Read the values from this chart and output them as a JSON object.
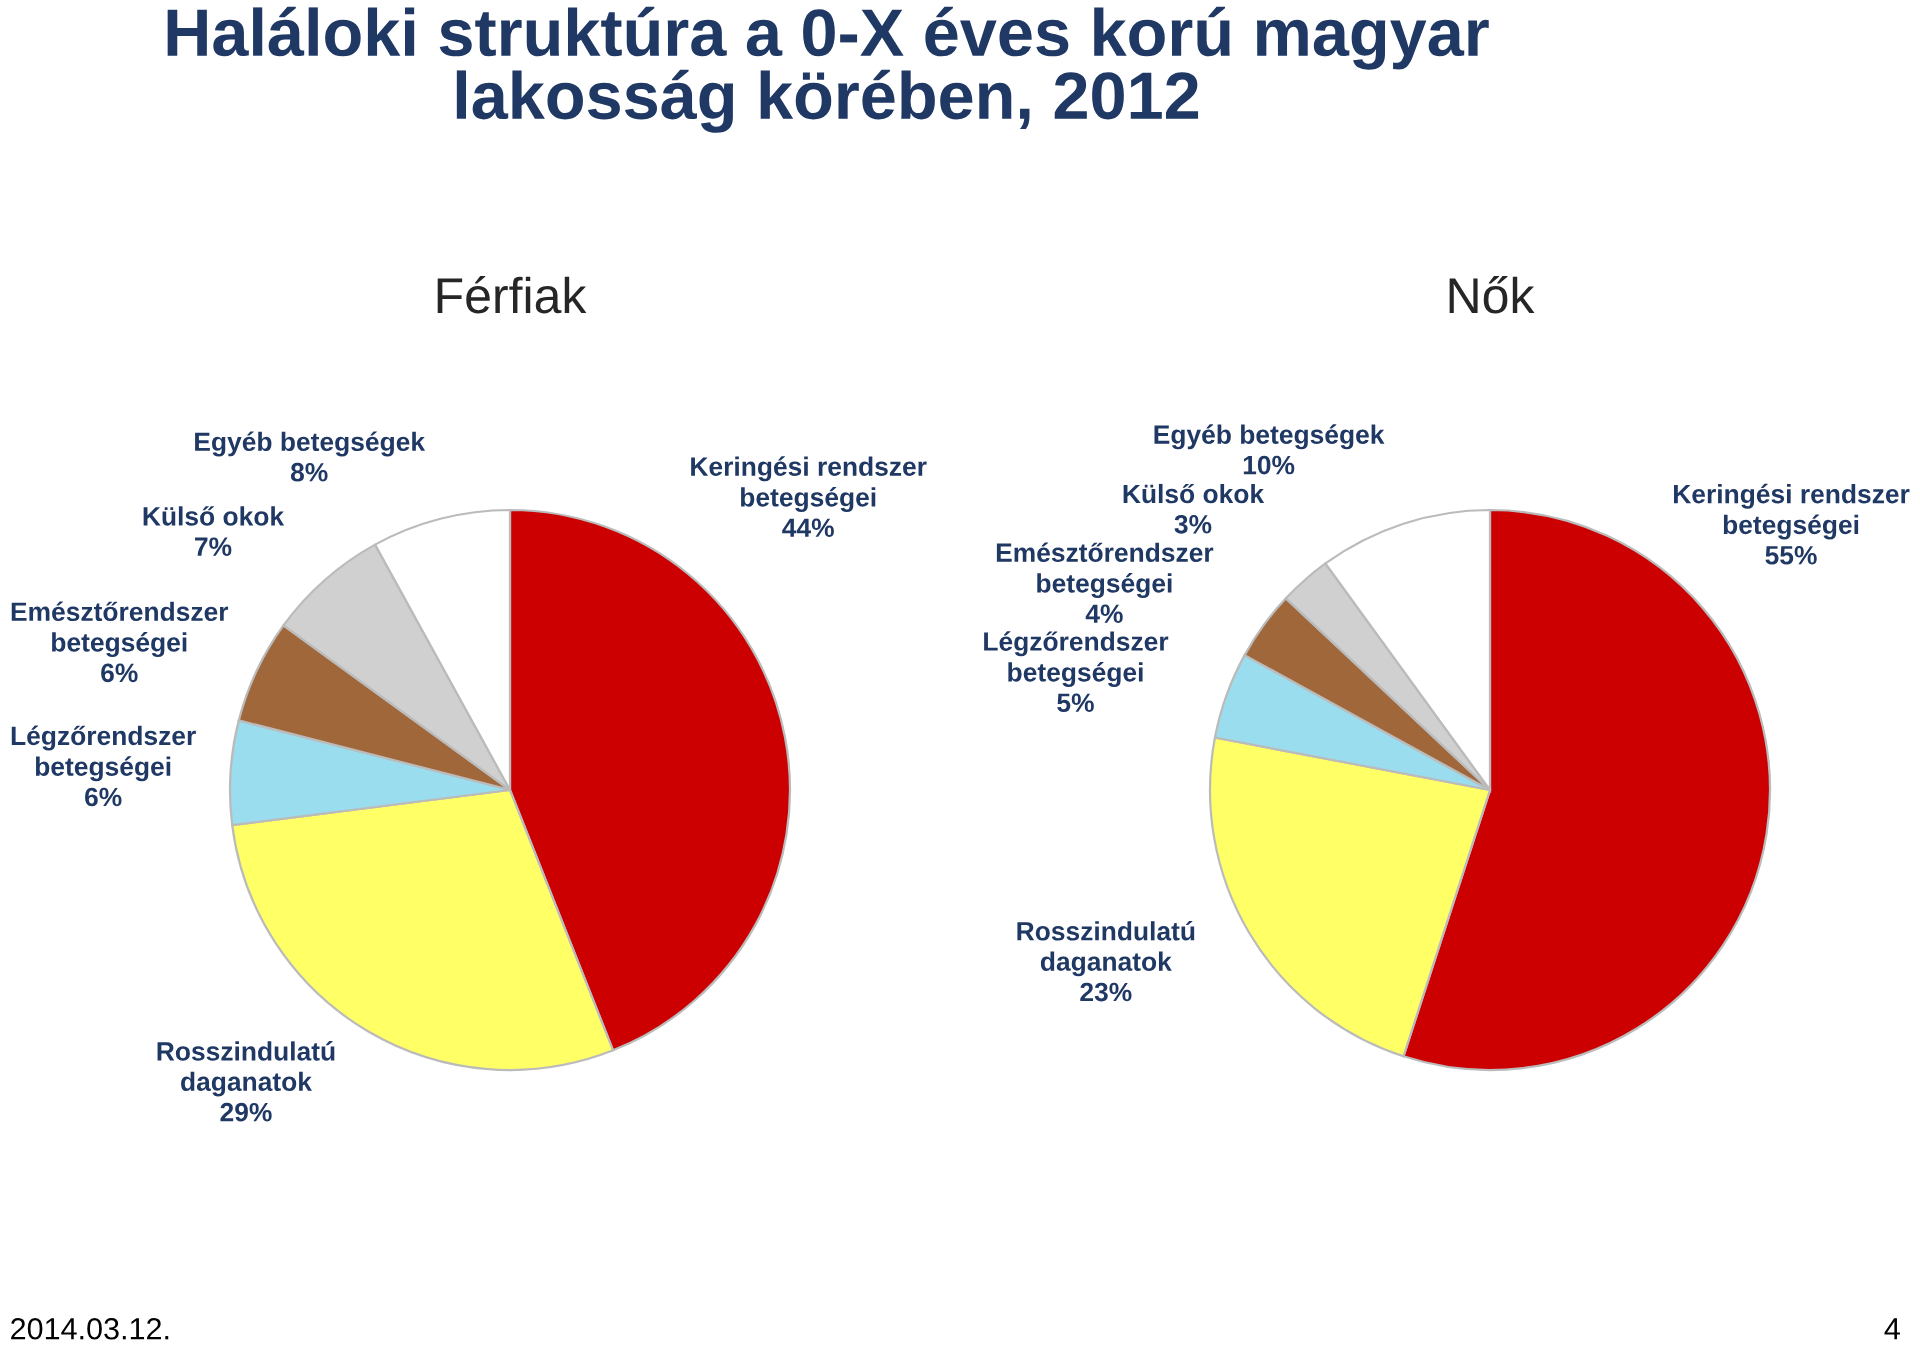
{
  "chart_data": [
    {
      "type": "pie",
      "title": "Férfiak",
      "annotations": [
        "Haláloki struktúra a 0-X éves korú magyar\nlakosság körében, 2012",
        "2014.03.12.",
        "4"
      ],
      "categories": [
        "Keringési rendszer\nbetegségei",
        "Rosszindulatú\ndaganatok",
        "Légzőrendszer\nbetegségei",
        "Emésztőrendszer\nbetegségei",
        "Külső okok",
        "Egyéb betegségek"
      ],
      "values": [
        44,
        29,
        6,
        6,
        7,
        8
      ],
      "value_labels": [
        "44%",
        "29%",
        "6%",
        "6%",
        "7%",
        "8%"
      ],
      "colors": [
        "#cc0000",
        "#ffff66",
        "#99ddee",
        "#a0673a",
        "#d0d0d0",
        "#ffffff"
      ],
      "legend": false
    },
    {
      "type": "pie",
      "title": "Nők",
      "categories": [
        "Keringési rendszer\nbetegségei",
        "Rosszindulatú\ndaganatok",
        "Légzőrendszer\nbetegségei",
        "Emésztőrendszer\nbetegségei",
        "Külső okok",
        "Egyéb betegségek"
      ],
      "values": [
        55,
        23,
        5,
        4,
        3,
        10
      ],
      "value_labels": [
        "55%",
        "23%",
        "5%",
        "4%",
        "3%",
        "10%"
      ],
      "colors": [
        "#cc0000",
        "#ffff66",
        "#99ddee",
        "#a0673a",
        "#d0d0d0",
        "#ffffff"
      ],
      "legend": false
    }
  ]
}
